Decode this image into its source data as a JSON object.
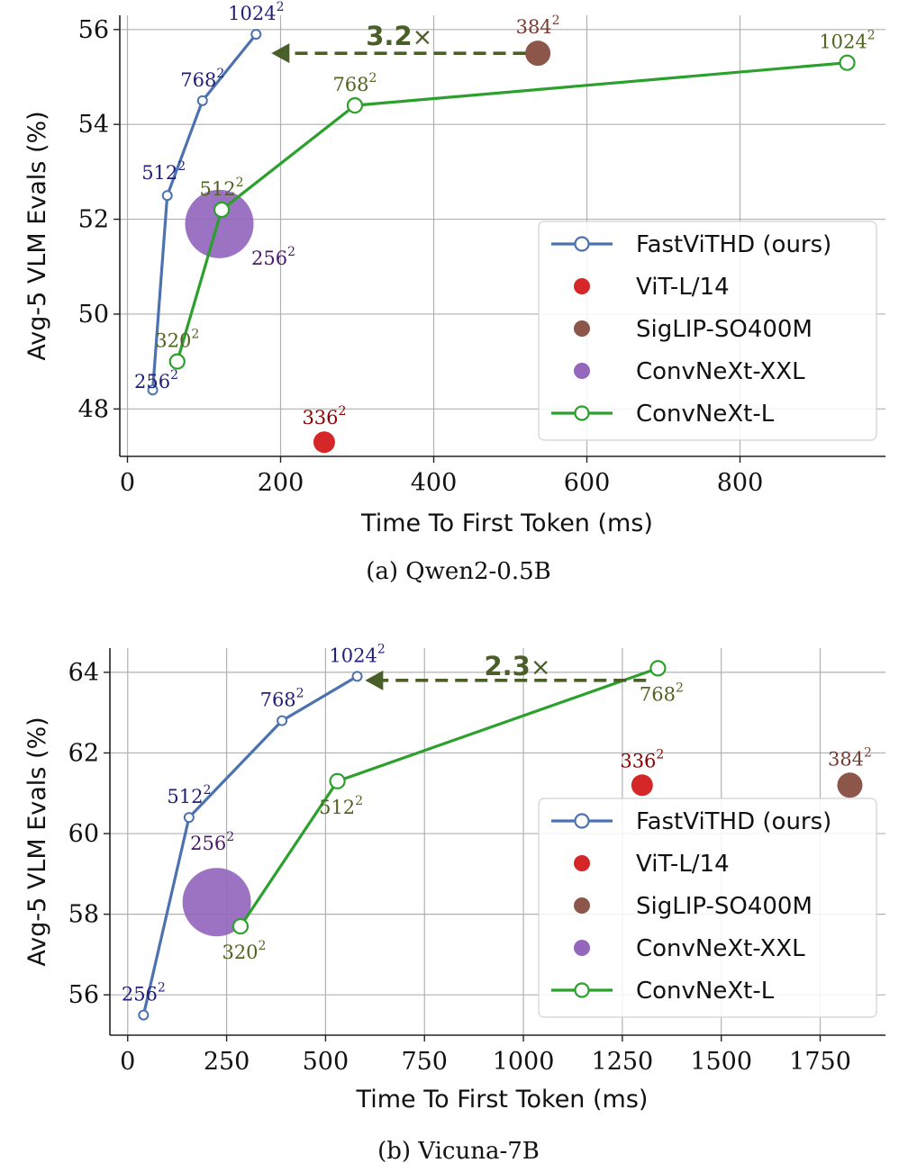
{
  "colors": {
    "fastvithd": "#4c72b0",
    "vit": "#d62728",
    "siglip": "#8c564b",
    "convnext_xxl": "#9467bd",
    "convnext_l": "#2ca02c",
    "speedup": "#4a5e2a",
    "res_fastvithd": "#1f1f7a",
    "res_vit": "#8b0000",
    "res_siglip": "#7a3a30",
    "res_xxl": "#4b1a6e",
    "res_convnext_l": "#4f6420"
  },
  "chart_data": [
    {
      "type": "line",
      "caption": "(a) Qwen2-0.5B",
      "xlabel": "Time To First Token (ms)",
      "ylabel": "Avg-5 VLM Evals (%)",
      "xlim": [
        -10,
        990
      ],
      "ylim": [
        47.0,
        56.3
      ],
      "xticks": [
        0,
        200,
        400,
        600,
        800
      ],
      "yticks": [
        48,
        50,
        52,
        54,
        56
      ],
      "grid": true,
      "legend_position": "lower-right",
      "legend": [
        "FastViTHD (ours)",
        "ViT-L/14",
        "SigLIP-SO400M",
        "ConvNeXt-XXL",
        "ConvNeXt-L"
      ],
      "series": [
        {
          "name": "FastViTHD (ours)",
          "kind": "line-small-marker",
          "color_key": "fastvithd",
          "label_color_key": "res_fastvithd",
          "points": [
            {
              "x": 33,
              "y": 48.4,
              "label": "256",
              "label_pos": "left"
            },
            {
              "x": 52,
              "y": 52.5,
              "label": "512",
              "label_pos": "above-left"
            },
            {
              "x": 98,
              "y": 54.5,
              "label": "768",
              "label_pos": "above"
            },
            {
              "x": 168,
              "y": 55.9,
              "label": "1024",
              "label_pos": "above"
            }
          ]
        },
        {
          "name": "ViT-L/14",
          "kind": "scatter",
          "color_key": "vit",
          "label_color_key": "res_vit",
          "size": 12,
          "points": [
            {
              "x": 257,
              "y": 47.3,
              "label": "336",
              "label_pos": "above"
            }
          ]
        },
        {
          "name": "SigLIP-SO400M",
          "kind": "scatter",
          "color_key": "siglip",
          "label_color_key": "res_siglip",
          "size": 14,
          "points": [
            {
              "x": 536,
              "y": 55.5,
              "label": "384",
              "label_pos": "above"
            }
          ]
        },
        {
          "name": "ConvNeXt-XXL",
          "kind": "scatter",
          "color_key": "convnext_xxl",
          "label_color_key": "res_xxl",
          "size": 38,
          "points": [
            {
              "x": 120,
              "y": 51.9,
              "label": "256",
              "label_pos": "below-right"
            }
          ]
        },
        {
          "name": "ConvNeXt-L",
          "kind": "line-open-marker",
          "color_key": "convnext_l",
          "label_color_key": "res_convnext_l",
          "points": [
            {
              "x": 65,
              "y": 49.0,
              "label": "320",
              "label_pos": "above"
            },
            {
              "x": 123,
              "y": 52.2,
              "label": "512",
              "label_pos": "above"
            },
            {
              "x": 297,
              "y": 54.4,
              "label": "768",
              "label_pos": "above"
            },
            {
              "x": 940,
              "y": 55.3,
              "label": "1024",
              "label_pos": "above"
            }
          ]
        }
      ],
      "annotation": {
        "text": "3.2",
        "suffix": "×",
        "from": {
          "x": 520,
          "y": 55.5
        },
        "to": {
          "x": 188,
          "y": 55.5
        },
        "text_x": 355,
        "text_y": 55.9
      }
    },
    {
      "type": "line",
      "caption": "(b) Vicuna-7B",
      "xlabel": "Time To First Token (ms)",
      "ylabel": "Avg-5 VLM Evals (%)",
      "xlim": [
        -45,
        1915
      ],
      "ylim": [
        55.0,
        64.6
      ],
      "xticks": [
        0,
        250,
        500,
        750,
        1000,
        1250,
        1500,
        1750
      ],
      "yticks": [
        56,
        58,
        60,
        62,
        64
      ],
      "grid": true,
      "legend_position": "lower-right",
      "legend": [
        "FastViTHD (ours)",
        "ViT-L/14",
        "SigLIP-SO400M",
        "ConvNeXt-XXL",
        "ConvNeXt-L"
      ],
      "series": [
        {
          "name": "FastViTHD (ours)",
          "kind": "line-small-marker",
          "color_key": "fastvithd",
          "label_color_key": "res_fastvithd",
          "points": [
            {
              "x": 40,
              "y": 55.5,
              "label": "256",
              "label_pos": "above"
            },
            {
              "x": 155,
              "y": 60.4,
              "label": "512",
              "label_pos": "above"
            },
            {
              "x": 390,
              "y": 62.8,
              "label": "768",
              "label_pos": "above"
            },
            {
              "x": 580,
              "y": 63.9,
              "label": "1024",
              "label_pos": "above"
            }
          ]
        },
        {
          "name": "ViT-L/14",
          "kind": "scatter",
          "color_key": "vit",
          "label_color_key": "res_vit",
          "size": 12,
          "points": [
            {
              "x": 1300,
              "y": 61.2,
              "label": "336",
              "label_pos": "above"
            }
          ]
        },
        {
          "name": "SigLIP-SO400M",
          "kind": "scatter",
          "color_key": "siglip",
          "label_color_key": "res_siglip",
          "size": 14,
          "points": [
            {
              "x": 1825,
              "y": 61.2,
              "label": "384",
              "label_pos": "above"
            }
          ]
        },
        {
          "name": "ConvNeXt-XXL",
          "kind": "scatter",
          "color_key": "convnext_xxl",
          "label_color_key": "res_xxl",
          "size": 38,
          "points": [
            {
              "x": 225,
              "y": 58.3,
              "label": "256",
              "label_pos": "above-far"
            }
          ]
        },
        {
          "name": "ConvNeXt-L",
          "kind": "line-open-marker",
          "color_key": "convnext_l",
          "label_color_key": "res_convnext_l",
          "points": [
            {
              "x": 285,
              "y": 57.7,
              "label": "320",
              "label_pos": "below"
            },
            {
              "x": 530,
              "y": 61.3,
              "label": "512",
              "label_pos": "below"
            },
            {
              "x": 1340,
              "y": 64.1,
              "label": "768",
              "label_pos": "below"
            }
          ]
        }
      ],
      "annotation": {
        "text": "2.3",
        "suffix": "×",
        "from": {
          "x": 1310,
          "y": 63.8
        },
        "to": {
          "x": 600,
          "y": 63.8
        },
        "text_x": 985,
        "text_y": 64.2
      }
    }
  ]
}
